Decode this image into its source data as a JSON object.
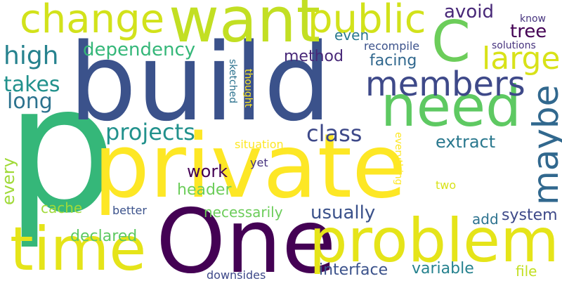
{
  "words": {
    "p": {
      "text": "p",
      "color": "#35b779"
    },
    "build": {
      "text": "build",
      "color": "#3b528b"
    },
    "private": {
      "text": "private",
      "color": "#fde725"
    },
    "one": {
      "text": "One",
      "color": "#440154"
    },
    "want": {
      "text": "want",
      "color": "#c2df23"
    },
    "problem": {
      "text": "problem",
      "color": "#e5e419"
    },
    "need": {
      "text": "need",
      "color": "#5ec962"
    },
    "time": {
      "text": "time",
      "color": "#e5e419"
    },
    "c": {
      "text": "C",
      "color": "#6ccd5a"
    },
    "change": {
      "text": "change",
      "color": "#d2e21b"
    },
    "public": {
      "text": "public",
      "color": "#d2e21b"
    },
    "members": {
      "text": "members",
      "color": "#3e4989"
    },
    "maybe": {
      "text": "maybe",
      "color": "#31688e"
    },
    "large": {
      "text": "large",
      "color": "#d8e219"
    },
    "high": {
      "text": "high",
      "color": "#26828e"
    },
    "dependency": {
      "text": "dependency",
      "color": "#35b779"
    },
    "projects": {
      "text": "projects",
      "color": "#21918c"
    },
    "class": {
      "text": "class",
      "color": "#3e4989"
    },
    "avoid": {
      "text": "avoid",
      "color": "#482878"
    },
    "tree": {
      "text": "tree",
      "color": "#440154"
    },
    "takes": {
      "text": "takes",
      "color": "#21918c"
    },
    "long": {
      "text": "long",
      "color": "#2c728e"
    },
    "work": {
      "text": "work",
      "color": "#440154"
    },
    "usually": {
      "text": "usually",
      "color": "#3b528b"
    },
    "extract": {
      "text": "extract",
      "color": "#2a788e"
    },
    "every": {
      "text": "every",
      "color": "#a0da39"
    },
    "header": {
      "text": "header",
      "color": "#6ccd5a"
    },
    "even": {
      "text": "even",
      "color": "#2a788e"
    },
    "facing": {
      "text": "facing",
      "color": "#31688e"
    },
    "method": {
      "text": "method",
      "color": "#482878"
    },
    "interface": {
      "text": "interface",
      "color": "#3b528b"
    },
    "variable": {
      "text": "variable",
      "color": "#26828e"
    },
    "system": {
      "text": "system",
      "color": "#3e4989"
    },
    "cache": {
      "text": "cache",
      "color": "#a0da39"
    },
    "declared": {
      "text": "declared",
      "color": "#5ec962"
    },
    "necessarily": {
      "text": "necessarily",
      "color": "#6ccd5a"
    },
    "add": {
      "text": "add",
      "color": "#2c728e"
    },
    "file": {
      "text": "file",
      "color": "#c2df23"
    },
    "recompile": {
      "text": "recompile",
      "color": "#3b528b"
    },
    "solutions": {
      "text": "solutions",
      "color": "#46337e"
    },
    "know": {
      "text": "know",
      "color": "#46337e"
    },
    "sketched": {
      "text": "sketched",
      "color": "#2c728e"
    },
    "thought": {
      "text": "thought",
      "color": "#fde725"
    },
    "situation": {
      "text": "situation",
      "color": "#fde725"
    },
    "yet": {
      "text": "yet",
      "color": "#46337e"
    },
    "better": {
      "text": "better",
      "color": "#3b528b"
    },
    "downsides": {
      "text": "downsides",
      "color": "#3e4989"
    },
    "everything": {
      "text": "everything",
      "color": "#fde725"
    },
    "two": {
      "text": "two",
      "color": "#d8e219"
    }
  }
}
